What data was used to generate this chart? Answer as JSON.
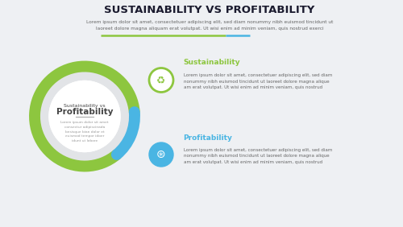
{
  "title": "SUSTAINABILITY VS PROFITABILITY",
  "subtitle_line1": "Lorem ipsum dolor sit amet, consectetuer adipiscing elit, sed diam nonummy nibh euismod tincidunt ut",
  "subtitle_line2": "laoreet dolore magna aliquam erat volutpat. Ut wisi enim ad minim veniam, quis nostrud exerci",
  "bg_color": "#eef0f3",
  "circle_bg": "#e2e4e7",
  "circle_border": "#c8cacc",
  "center_title_small": "Sustainability vs",
  "center_title_big": "Profitability",
  "center_body": "Lorem ipsum dolor sit amet\nconsectur adipiscinada\nbesisque bian dolor et\neuismod tempor idoer\nidunt ut labore",
  "green_color": "#8dc63f",
  "blue_color": "#4ab5e3",
  "label1": "Sustainability",
  "label2": "Profitability",
  "body1": "Lorem ipsum dolor sit amet, consectetuer adipiscing elit, sed diam\nnonummy nibh euismod tincidunt ut laoreet dolore magna alique\nam erat volutpat. Ut wisi enim ad minim veniam, quis nostrud",
  "body2": "Lorem ipsum dolor sit amet, consectetuer adipiscing elit, sed diam\nnonummy nibh euismod tincidunt ut laoreet dolore magna alique\nam erat volutpat. Ut wisi enim ad minim veniam, quis nostrud",
  "title_fontsize": 9.5,
  "subtitle_fontsize": 4.2,
  "label_fontsize": 6.5,
  "body_fontsize": 4.0,
  "center_title_color": "#444444",
  "text_color": "#666666",
  "arc_linewidth_outer": 10,
  "arc_linewidth_inner": 7,
  "green_arc_theta1": 5,
  "green_arc_theta2": 310,
  "blue_arc_theta1": 310,
  "blue_arc_theta2": 365
}
